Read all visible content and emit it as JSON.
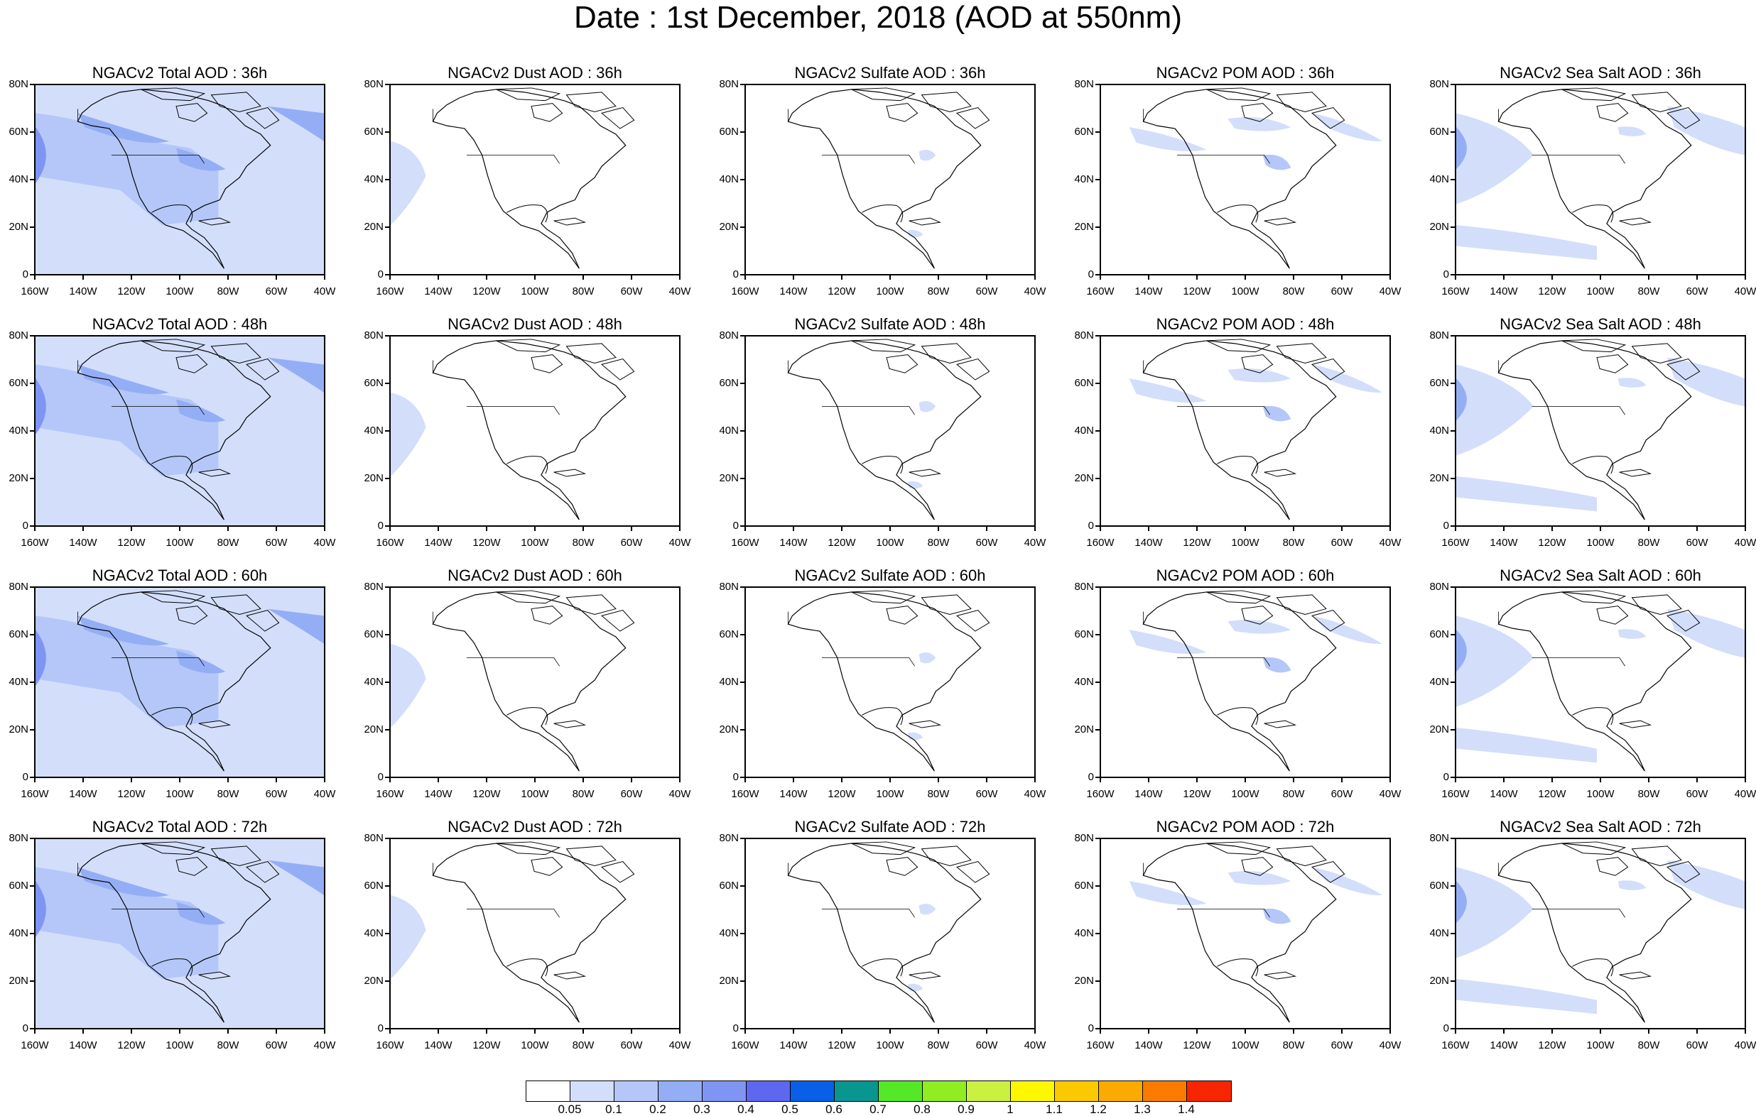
{
  "title": "Date : 1st December, 2018 (AOD at 550nm)",
  "x_tick_labels": [
    "160W",
    "140W",
    "120W",
    "100W",
    "80W",
    "60W",
    "40W"
  ],
  "y_tick_labels": [
    "0",
    "20N",
    "40N",
    "60N",
    "80N"
  ],
  "colorbar": {
    "colors": [
      "#ffffff",
      "#d3defb",
      "#b4c7f8",
      "#94aef6",
      "#7f95f3",
      "#5e67f0",
      "#0a5fe8",
      "#0a9690",
      "#55e826",
      "#8fed22",
      "#caf142",
      "#fdf800",
      "#fbc900",
      "#fbaa00",
      "#fa7b00",
      "#f82600"
    ],
    "labels": [
      "0.05",
      "0.1",
      "0.2",
      "0.3",
      "0.4",
      "0.5",
      "0.6",
      "0.7",
      "0.8",
      "0.9",
      "1",
      "1.1",
      "1.2",
      "1.3",
      "1.4"
    ]
  },
  "panels": [
    {
      "title": "NGACv2 Total AOD : 36h",
      "coverage": "heavy"
    },
    {
      "title": "NGACv2 Dust AOD : 36h",
      "coverage": "dust"
    },
    {
      "title": "NGACv2 Sulfate AOD : 36h",
      "coverage": "minimal"
    },
    {
      "title": "NGACv2 POM AOD : 36h",
      "coverage": "light"
    },
    {
      "title": "NGACv2 Sea Salt AOD : 36h",
      "coverage": "medium"
    },
    {
      "title": "NGACv2 Total AOD : 48h",
      "coverage": "heavy"
    },
    {
      "title": "NGACv2 Dust AOD : 48h",
      "coverage": "dust"
    },
    {
      "title": "NGACv2 Sulfate AOD : 48h",
      "coverage": "minimal"
    },
    {
      "title": "NGACv2 POM AOD : 48h",
      "coverage": "light"
    },
    {
      "title": "NGACv2 Sea Salt AOD : 48h",
      "coverage": "medium"
    },
    {
      "title": "NGACv2 Total AOD : 60h",
      "coverage": "heavy"
    },
    {
      "title": "NGACv2 Dust AOD : 60h",
      "coverage": "dust"
    },
    {
      "title": "NGACv2 Sulfate AOD : 60h",
      "coverage": "minimal"
    },
    {
      "title": "NGACv2 POM AOD : 60h",
      "coverage": "light"
    },
    {
      "title": "NGACv2 Sea Salt AOD : 60h",
      "coverage": "medium"
    },
    {
      "title": "NGACv2 Total AOD : 72h",
      "coverage": "heavy"
    },
    {
      "title": "NGACv2 Dust AOD : 72h",
      "coverage": "dust"
    },
    {
      "title": "NGACv2 Sulfate AOD : 72h",
      "coverage": "minimal"
    },
    {
      "title": "NGACv2 POM AOD : 72h",
      "coverage": "light"
    },
    {
      "title": "NGACv2 Sea Salt  AOD : 72h",
      "coverage": "medium"
    }
  ]
}
